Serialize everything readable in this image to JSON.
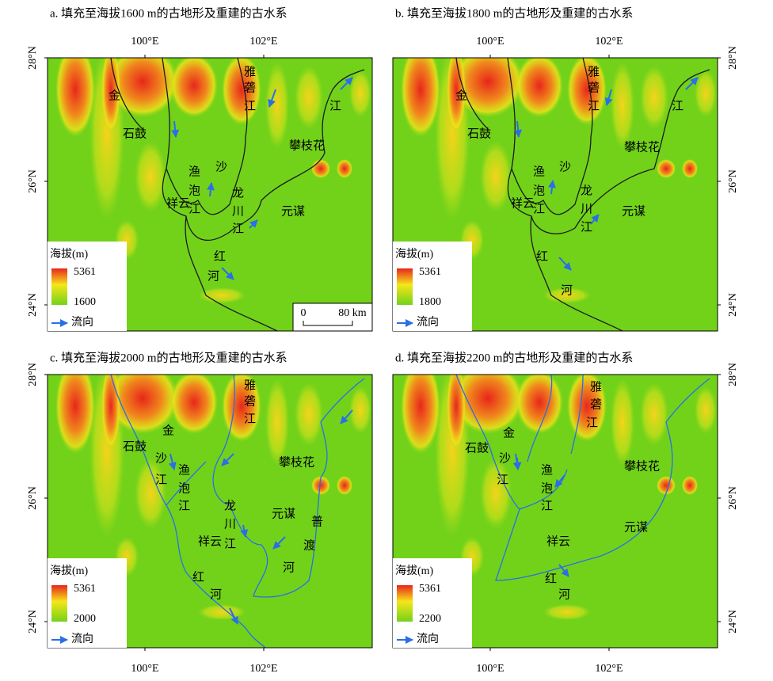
{
  "panels": [
    {
      "title": "a. 填充至海拔1600 m的古地形及重建的古水系",
      "lon_labels": [
        "100°E",
        "102°E"
      ],
      "lat_labels": [
        "28°N",
        "26°N",
        "24°N"
      ],
      "legend": {
        "title": "海拔(m)",
        "max": 5361,
        "min": 1600,
        "flow": "流向"
      },
      "place_labels": [
        "金",
        "石鼓",
        "雅",
        "砻",
        "江",
        "江",
        "攀枝花",
        "沙",
        "渔",
        "泡",
        "江",
        "祥云",
        "龙",
        "川",
        "江",
        "元谋",
        "红",
        "河"
      ],
      "scale_bar": {
        "start": "0",
        "end": "80 km"
      }
    },
    {
      "title": "b. 填充至海拔1800 m的古地形及重建的古水系",
      "lon_labels": [
        "100°E",
        "102°E"
      ],
      "lat_labels": [
        "28°N",
        "26°N",
        "24°N"
      ],
      "legend": {
        "title": "海拔(m)",
        "max": 5361,
        "min": 1800,
        "flow": "流向"
      },
      "place_labels": [
        "金",
        "石鼓",
        "雅",
        "砻",
        "江",
        "江",
        "攀枝花",
        "沙",
        "渔",
        "泡",
        "江",
        "祥云",
        "龙",
        "川",
        "江",
        "元谋",
        "红",
        "河"
      ]
    },
    {
      "title": "c. 填充至海拔2000 m的古地形及重建的古水系",
      "lon_labels": [
        "100°E",
        "102°E"
      ],
      "lat_labels": [
        "28°N",
        "26°N",
        "24°N"
      ],
      "legend": {
        "title": "海拔(m)",
        "max": 5361,
        "min": 2000,
        "flow": "流向"
      },
      "place_labels": [
        "雅",
        "砻",
        "江",
        "金",
        "石鼓",
        "沙",
        "江",
        "渔",
        "泡",
        "江",
        "攀枝花",
        "龙",
        "川",
        "江",
        "元谋",
        "普",
        "渡",
        "河",
        "祥云",
        "红",
        "河"
      ]
    },
    {
      "title": "d. 填充至海拔2200 m的古地形及重建的古水系",
      "lon_labels": [
        "100°E",
        "102°E"
      ],
      "lat_labels": [
        "28°N",
        "26°N",
        "24°N"
      ],
      "legend": {
        "title": "海拔(m)",
        "max": 5361,
        "min": 2200,
        "flow": "流向"
      },
      "place_labels": [
        "雅",
        "砻",
        "江",
        "金",
        "石鼓",
        "沙",
        "江",
        "渔",
        "泡",
        "江",
        "攀枝花",
        "元谋",
        "祥云",
        "红",
        "河"
      ]
    }
  ]
}
